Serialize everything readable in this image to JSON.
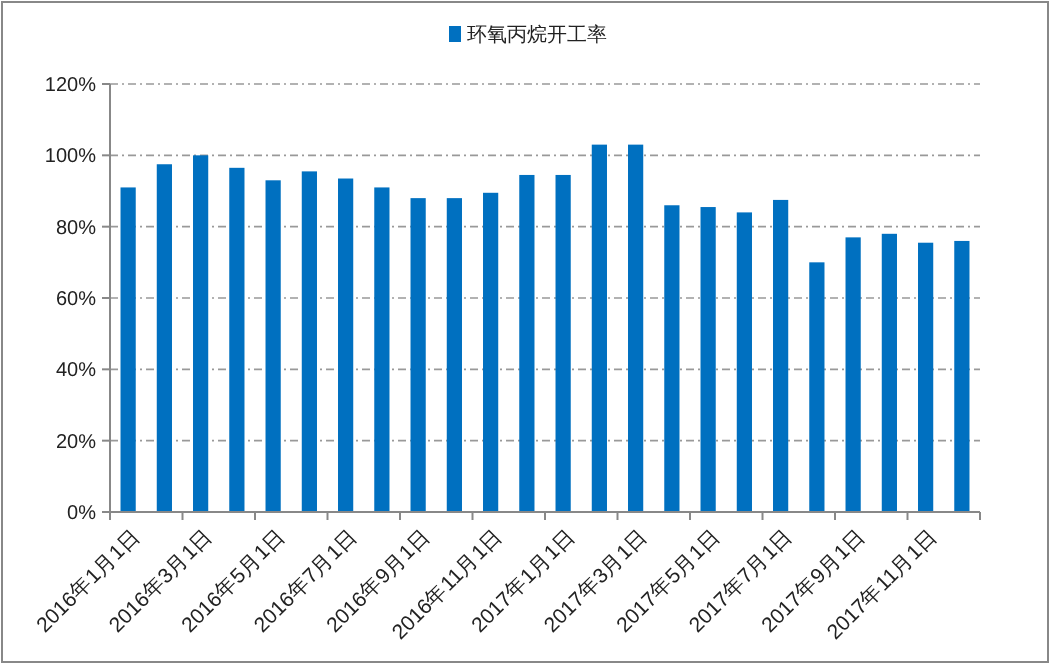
{
  "chart_data": {
    "type": "bar",
    "categories": [
      "2016年1月1日",
      null,
      "2016年3月1日",
      null,
      "2016年5月1日",
      null,
      "2016年7月1日",
      null,
      "2016年9月1日",
      null,
      "2016年11月1日",
      null,
      "2017年1月1日",
      null,
      "2017年3月1日",
      null,
      "2017年5月1日",
      null,
      "2017年7月1日",
      null,
      "2017年9月1日",
      null,
      "2017年11月1日",
      null
    ],
    "series": [
      {
        "name": "环氧丙烷开工率",
        "color": "#0070c0",
        "values": [
          91,
          97.5,
          100,
          96.5,
          93,
          95.5,
          93.5,
          91,
          88,
          88,
          89.5,
          94.5,
          94.5,
          103,
          103,
          86,
          85.5,
          84,
          87.5,
          70,
          77,
          78,
          75.5,
          76
        ]
      }
    ],
    "ylim": [
      0,
      120
    ],
    "yticks": [
      {
        "value": 0,
        "label": "0%"
      },
      {
        "value": 20,
        "label": "20%"
      },
      {
        "value": 40,
        "label": "40%"
      },
      {
        "value": 60,
        "label": "60%"
      },
      {
        "value": 80,
        "label": "80%"
      },
      {
        "value": 100,
        "label": "100%"
      },
      {
        "value": 120,
        "label": "120%"
      }
    ],
    "grid": "y",
    "legend": "top"
  }
}
